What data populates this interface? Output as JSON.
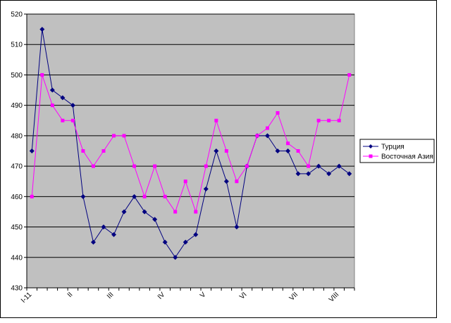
{
  "chart_data": {
    "type": "line",
    "categories": [
      "I-11",
      null,
      null,
      null,
      "II",
      null,
      null,
      null,
      "III",
      null,
      null,
      null,
      null,
      "IV",
      null,
      null,
      null,
      "V",
      null,
      null,
      null,
      "VI",
      null,
      null,
      null,
      null,
      "VII",
      null,
      null,
      null,
      "VIII",
      null
    ],
    "series": [
      {
        "name": "Турция",
        "color": "#000080",
        "values": [
          475,
          515,
          495,
          492.5,
          490,
          460,
          445,
          450,
          447.5,
          455,
          460,
          455,
          452.5,
          445,
          440,
          445,
          447.5,
          462.5,
          475,
          465,
          450,
          470,
          480,
          480,
          475,
          475,
          467.5,
          467.5,
          470,
          467.5,
          470,
          467.5
        ]
      },
      {
        "name": "Восточная Азия",
        "color": "#ff00ff",
        "values": [
          460,
          500,
          490,
          485,
          485,
          475,
          470,
          475,
          480,
          480,
          470,
          460,
          470,
          460,
          455,
          465,
          455,
          470,
          485,
          475,
          465,
          470,
          480,
          482.5,
          487.5,
          477.5,
          475,
          470,
          485,
          485,
          485,
          500
        ]
      }
    ],
    "ylim": [
      430,
      520
    ],
    "yticks": [
      430,
      440,
      450,
      460,
      470,
      480,
      490,
      500,
      510,
      520
    ],
    "grid": true,
    "legend": "right"
  }
}
